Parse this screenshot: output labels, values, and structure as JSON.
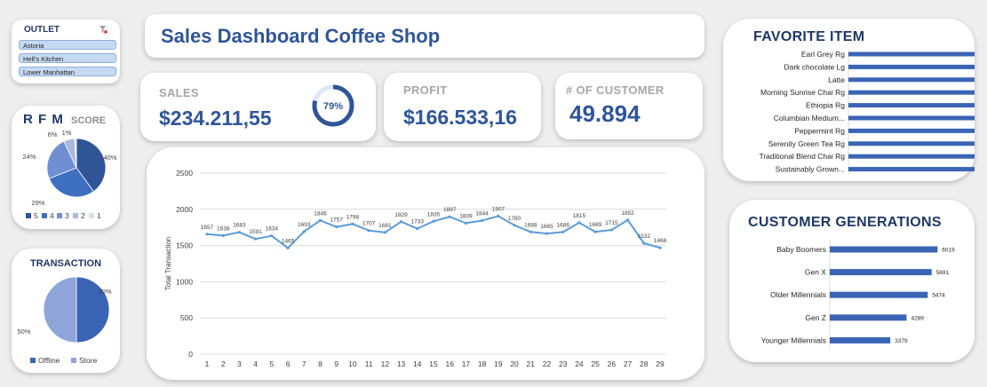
{
  "outlet": {
    "title": "OUTLET",
    "filter_icon": "filter-clear-icon",
    "items": [
      "Astoria",
      "Hell's Kitchen",
      "Lower Manhattan"
    ]
  },
  "header": {
    "title": "Sales Dashboard Coffee Shop"
  },
  "kpis": {
    "sales_label": "SALES",
    "sales_value": "$234.211,55",
    "sales_gauge": {
      "value": 79,
      "label": "79%"
    },
    "profit_label": "PROFIT",
    "profit_value": "$166.533,16",
    "customer_label": "# OF CUSTOMER",
    "customer_value": "49.894"
  },
  "colors": {
    "primary": "#2f5597",
    "dark": "#203864",
    "light": "#8faadc",
    "line": "#5b9bd5"
  },
  "chart_data": [
    {
      "type": "pie",
      "title_main": "R F M",
      "title_sub": "SCORE",
      "labels": [
        "5",
        "4",
        "3",
        "2",
        "1"
      ],
      "values": [
        40,
        29,
        24,
        6,
        1
      ],
      "data_labels": [
        "40%",
        "29%",
        "24%",
        "6%",
        "1%"
      ],
      "colors": [
        "#2f5597",
        "#3e6fc0",
        "#6f8fd2",
        "#a9b8dc",
        "#d9dfee"
      ],
      "legend_position": "bottom"
    },
    {
      "type": "pie",
      "title": "TRANSACTION",
      "labels": [
        "Offline",
        "Store"
      ],
      "values": [
        50,
        50
      ],
      "data_labels": [
        "50%",
        "50%"
      ],
      "colors": [
        "#3a64b4",
        "#8fa4d8"
      ],
      "legend_position": "bottom"
    },
    {
      "type": "line",
      "x": [
        1,
        2,
        3,
        4,
        5,
        6,
        7,
        8,
        9,
        10,
        11,
        12,
        13,
        14,
        15,
        16,
        17,
        18,
        19,
        20,
        21,
        22,
        23,
        24,
        25,
        26,
        27,
        28,
        29
      ],
      "values": [
        1657,
        1638,
        1683,
        1591,
        1634,
        1465,
        1693,
        1846,
        1757,
        1798,
        1707,
        1681,
        1829,
        1733,
        1835,
        1897,
        1809,
        1844,
        1907,
        1780,
        1688,
        1665,
        1686,
        1815,
        1689,
        1715,
        1852,
        1532,
        1468
      ],
      "ylabel": "Total Transaction",
      "ylim": [
        0,
        2500
      ],
      "yticks": [
        0,
        500,
        1000,
        1500,
        2000,
        2500
      ],
      "grid": true
    },
    {
      "type": "bar",
      "orientation": "horizontal",
      "title": "FAVORITE ITEM",
      "categories": [
        "Earl Grey Rg",
        "Dark chocolate Lg",
        "Latte",
        "Morning Sunrise Chai Rg",
        "Ethiopia Rg",
        "Columbian Medium...",
        "Peppermint Rg",
        "Serenity Green Tea Rg",
        "Traditional Blend Chai Rg",
        "Sustainably Grown..."
      ],
      "values": [
        1558,
        1546,
        1531,
        1513,
        1506,
        1502,
        1498,
        1498,
        1497,
        1496
      ],
      "xlim": [
        0,
        1700
      ]
    },
    {
      "type": "bar",
      "orientation": "horizontal",
      "title": "CUSTOMER GENERATIONS",
      "categories": [
        "Baby Boomers",
        "Gen X",
        "Older Millennials",
        "Gen Z",
        "Younger Millennials"
      ],
      "values": [
        6019,
        5691,
        5474,
        4289,
        3379
      ],
      "xlim": [
        0,
        6500
      ]
    }
  ]
}
